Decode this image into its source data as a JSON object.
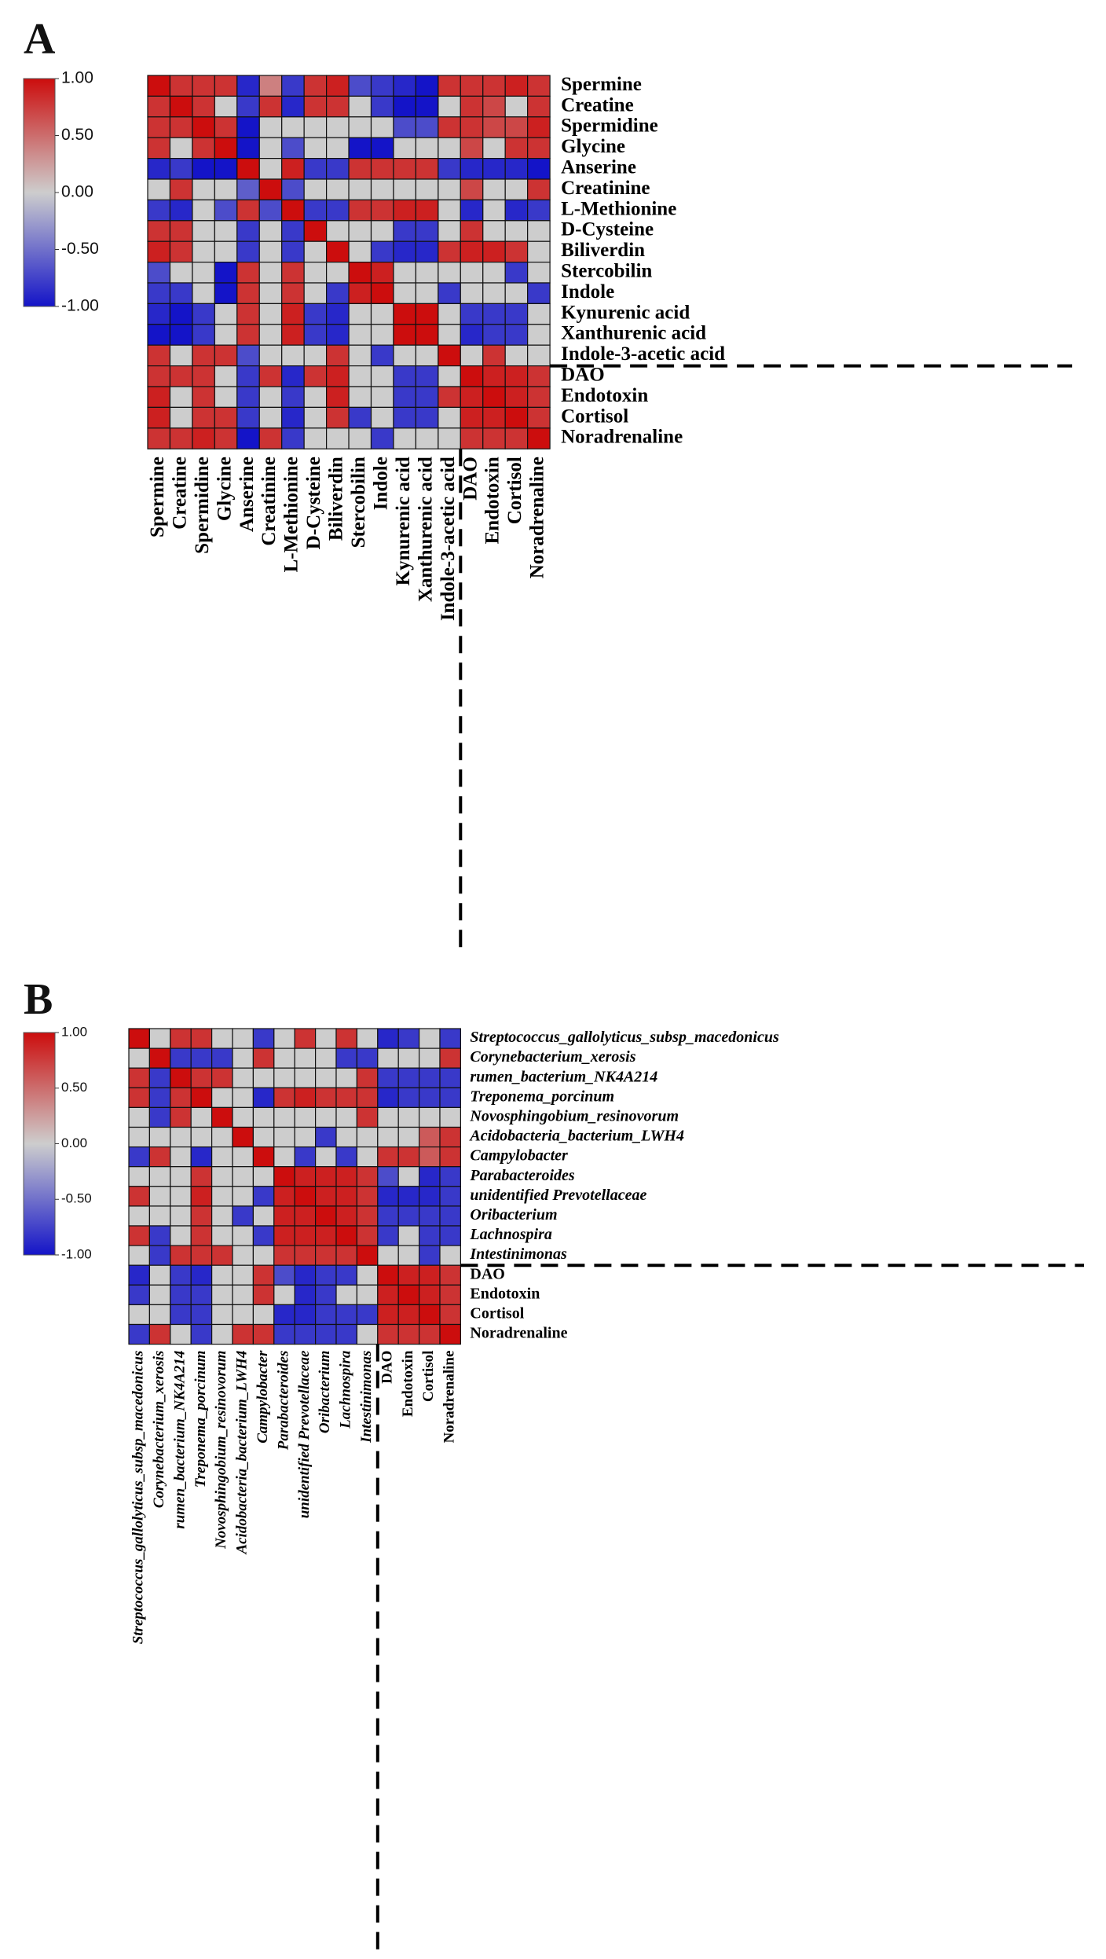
{
  "chart_data": [
    {
      "type": "heatmap",
      "panel_label": "A",
      "title": "",
      "colorbar": {
        "min": -1.0,
        "max": 1.0,
        "ticks": [
          "1.00",
          "0.50",
          "0.00",
          "-0.50",
          "-1.00"
        ],
        "tick_values": [
          1,
          0.5,
          0,
          -0.5,
          -1
        ]
      },
      "colors": {
        "neg": "#1414c8",
        "zero": "#cdcdcd",
        "pos": "#cc0d0d"
      },
      "rows": [
        "Spermine",
        "Creatine",
        "Spermidine",
        "Glycine",
        "Anserine",
        "Creatinine",
        "L-Methionine",
        "D-Cysteine",
        "Biliverdin",
        "Stercobilin",
        "Indole",
        "Kynurenic acid",
        "Xanthurenic acid",
        "Indole-3-acetic acid",
        "DAO",
        "Endotoxin",
        "Cortisol",
        "Noradrenaline"
      ],
      "columns": [
        "Spermine",
        "Creatine",
        "Spermidine",
        "Glycine",
        "Anserine",
        "Creatinine",
        "L-Methionine",
        "D-Cysteine",
        "Biliverdin",
        "Stercobilin",
        "Indole",
        "Kynurenic acid",
        "Xanthurenic acid",
        "Indole-3-acetic acid",
        "DAO",
        "Endotoxin",
        "Cortisol",
        "Noradrenaline"
      ],
      "italic_labels": false,
      "divider_after_index": 13,
      "values": [
        [
          1,
          0.8,
          0.8,
          0.8,
          -0.9,
          0.4,
          -0.8,
          0.8,
          0.9,
          -0.7,
          -0.8,
          -0.9,
          -1,
          0.8,
          0.8,
          0.8,
          0.9,
          0.8
        ],
        [
          0.8,
          1,
          0.8,
          0,
          -0.8,
          0.8,
          -0.9,
          0.8,
          0.8,
          0,
          -0.8,
          -1,
          -1,
          0,
          0.8,
          0.7,
          0,
          0.8
        ],
        [
          0.8,
          0.8,
          1,
          0.8,
          -1,
          0,
          0,
          0,
          0,
          0,
          0,
          -0.7,
          -0.7,
          0.8,
          0.8,
          0.7,
          0.7,
          0.9
        ],
        [
          0.8,
          0,
          0.8,
          1,
          -1,
          0,
          -0.7,
          0,
          0,
          -1,
          -1,
          0,
          0,
          0,
          0.7,
          0,
          0.8,
          0.8
        ],
        [
          -0.9,
          -0.8,
          -1,
          -1,
          1,
          0,
          0.9,
          -0.8,
          -0.8,
          0.8,
          0.8,
          0.8,
          0.8,
          -0.8,
          -0.9,
          -0.9,
          -0.9,
          -1
        ],
        [
          0,
          0.8,
          0,
          0,
          -0.6,
          1,
          -0.7,
          0,
          0,
          0,
          0,
          0,
          0,
          0,
          0.7,
          0,
          0,
          0.8
        ],
        [
          -0.8,
          -0.9,
          0,
          -0.7,
          0.8,
          -0.7,
          1,
          -0.8,
          -0.8,
          0.8,
          0.8,
          0.9,
          0.9,
          0,
          -0.9,
          0,
          -0.9,
          -0.8
        ],
        [
          0.8,
          0.8,
          0,
          0,
          -0.8,
          0,
          -0.8,
          1,
          0,
          0,
          0,
          -0.8,
          -0.8,
          0,
          0.8,
          0,
          0,
          0
        ],
        [
          0.9,
          0.8,
          0,
          0,
          -0.8,
          0,
          -0.8,
          0,
          1,
          0,
          -0.8,
          -0.9,
          -0.9,
          0.8,
          0.9,
          0.9,
          0.8,
          0
        ],
        [
          -0.7,
          0,
          0,
          -1,
          0.8,
          0,
          0.8,
          0,
          0,
          1,
          0.9,
          0,
          0,
          0,
          0,
          0,
          -0.8,
          0
        ],
        [
          -0.8,
          -0.8,
          0,
          -1,
          0.8,
          0,
          0.8,
          0,
          -0.8,
          0.9,
          1,
          0,
          0,
          -0.8,
          0,
          0,
          0,
          -0.8
        ],
        [
          -0.9,
          -1,
          -0.8,
          0,
          0.8,
          0,
          0.9,
          -0.8,
          -0.9,
          0,
          0,
          1,
          1,
          0,
          -0.8,
          -0.8,
          -0.8,
          0
        ],
        [
          -1,
          -1,
          -0.8,
          0,
          0.8,
          0,
          0.9,
          -0.8,
          -0.9,
          0,
          0,
          1,
          1,
          0,
          -0.9,
          -0.8,
          -0.8,
          0
        ],
        [
          0.8,
          0,
          0.8,
          0.8,
          -0.7,
          0,
          0,
          0,
          0.8,
          0,
          -0.8,
          0,
          0,
          1,
          0,
          0.8,
          0,
          0
        ],
        [
          0.8,
          0.8,
          0.8,
          0,
          -0.8,
          0.8,
          -0.9,
          0.8,
          0.9,
          0,
          0,
          -0.8,
          -0.8,
          0,
          1,
          0.9,
          0.9,
          0.8
        ],
        [
          0.9,
          0,
          0.8,
          0,
          -0.8,
          0,
          -0.8,
          0,
          0.9,
          0,
          0,
          -0.8,
          -0.8,
          0.8,
          0.9,
          1,
          0.9,
          0.8
        ],
        [
          0.9,
          0,
          0.8,
          0.8,
          -0.8,
          0,
          -0.9,
          0,
          0.8,
          -0.8,
          0,
          -0.8,
          -0.8,
          0,
          0.9,
          0.9,
          1,
          0.8
        ],
        [
          0.8,
          0.8,
          0.9,
          0.8,
          -1,
          0.8,
          -0.8,
          0,
          0,
          0,
          -0.8,
          0,
          0,
          0,
          0.8,
          0.8,
          0.8,
          1
        ]
      ]
    },
    {
      "type": "heatmap",
      "panel_label": "B",
      "title": "",
      "colorbar": {
        "min": -1.0,
        "max": 1.0,
        "ticks": [
          "1.00",
          "0.50",
          "0.00",
          "-0.50",
          "-1.00"
        ],
        "tick_values": [
          1,
          0.5,
          0,
          -0.5,
          -1
        ]
      },
      "colors": {
        "neg": "#1414c8",
        "zero": "#cdcdcd",
        "pos": "#cc0d0d"
      },
      "rows": [
        "Streptococcus_gallolyticus_subsp_macedonicus",
        "Corynebacterium_xerosis",
        "rumen_bacterium_NK4A214",
        "Treponema_porcinum",
        "Novosphingobium_resinovorum",
        "Acidobacteria_bacterium_LWH4",
        "Campylobacter",
        "Parabacteroides",
        "unidentified Prevotellaceae",
        "Oribacterium",
        "Lachnospira",
        "Intestinimonas",
        "DAO",
        "Endotoxin",
        "Cortisol",
        "Noradrenaline"
      ],
      "columns": [
        "Streptococcus_gallolyticus_subsp_macedonicus",
        "Corynebacterium_xerosis",
        "rumen_bacterium_NK4A214",
        "Treponema_porcinum",
        "Novosphingobium_resinovorum",
        "Acidobacteria_bacterium_LWH4",
        "Campylobacter",
        "Parabacteroides",
        "unidentified Prevotellaceae",
        "Oribacterium",
        "Lachnospira",
        "Intestinimonas",
        "DAO",
        "Endotoxin",
        "Cortisol",
        "Noradrenaline"
      ],
      "italic_labels": true,
      "divider_after_index": 11,
      "values": [
        [
          1,
          0,
          0.8,
          0.8,
          0,
          0,
          -0.8,
          0,
          0.8,
          0,
          0.8,
          0,
          -0.9,
          -0.8,
          0,
          -0.8
        ],
        [
          0,
          1,
          -0.8,
          -0.8,
          -0.8,
          0,
          0.8,
          0,
          0,
          0,
          -0.8,
          -0.8,
          0,
          0,
          0,
          0.8
        ],
        [
          0.8,
          -0.8,
          1,
          0.8,
          0.8,
          0,
          0,
          0,
          0,
          0,
          0,
          0.8,
          -0.8,
          -0.8,
          -0.8,
          -0.8
        ],
        [
          0.8,
          -0.8,
          0.8,
          1,
          0,
          0,
          -0.9,
          0.8,
          0.9,
          0.8,
          0.8,
          0.8,
          -0.9,
          -0.8,
          -0.8,
          -0.8
        ],
        [
          0,
          -0.8,
          0.8,
          0,
          1,
          0,
          0,
          0,
          0,
          0,
          0,
          0.8,
          0,
          0,
          0,
          0
        ],
        [
          0,
          0,
          0,
          0,
          0,
          1,
          0,
          0,
          0,
          -0.8,
          0,
          0,
          0,
          0,
          0.6,
          0.8
        ],
        [
          -0.8,
          0.8,
          0,
          -0.9,
          0,
          0,
          1,
          0,
          -0.8,
          0,
          -0.8,
          0,
          0.8,
          0.8,
          0.6,
          0.8
        ],
        [
          0,
          0,
          0,
          0.8,
          0,
          0,
          0,
          1,
          0.9,
          0.9,
          0.9,
          0.8,
          -0.7,
          0,
          -0.9,
          -0.8
        ],
        [
          0.8,
          0,
          0,
          0.9,
          0,
          0,
          -0.8,
          0.9,
          1,
          0.9,
          0.9,
          0.8,
          -0.9,
          -0.9,
          -0.9,
          -0.8
        ],
        [
          0,
          0,
          0,
          0.8,
          0,
          -0.8,
          0,
          0.9,
          0.9,
          1,
          0.9,
          0.8,
          -0.8,
          -0.8,
          -0.8,
          -0.8
        ],
        [
          0.8,
          -0.8,
          0,
          0.8,
          0,
          0,
          -0.8,
          0.9,
          0.9,
          0.9,
          1,
          0.8,
          -0.8,
          0,
          -0.8,
          -0.8
        ],
        [
          0,
          -0.8,
          0.8,
          0.8,
          0.8,
          0,
          0,
          0.8,
          0.8,
          0.8,
          0.8,
          1,
          0,
          0,
          -0.8,
          0
        ],
        [
          -0.9,
          0,
          -0.8,
          -0.9,
          0,
          0,
          0.8,
          -0.7,
          -0.9,
          -0.8,
          -0.8,
          0,
          1,
          0.9,
          0.9,
          0.8
        ],
        [
          -0.8,
          0,
          -0.8,
          -0.8,
          0,
          0,
          0.8,
          0,
          -0.9,
          -0.8,
          0,
          0,
          0.9,
          1,
          0.9,
          0.8
        ],
        [
          0,
          0,
          -0.8,
          -0.8,
          0,
          0,
          0,
          -0.9,
          -0.9,
          -0.8,
          -0.8,
          -0.8,
          0.9,
          0.9,
          1,
          0.8
        ],
        [
          -0.8,
          0.8,
          0,
          -0.8,
          0,
          0.8,
          0.8,
          -0.8,
          -0.8,
          -0.8,
          -0.8,
          0,
          0.8,
          0.8,
          0.8,
          1
        ]
      ]
    }
  ]
}
